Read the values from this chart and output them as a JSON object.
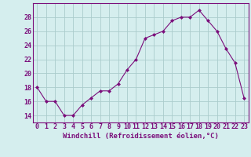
{
  "x": [
    0,
    1,
    2,
    3,
    4,
    5,
    6,
    7,
    8,
    9,
    10,
    11,
    12,
    13,
    14,
    15,
    16,
    17,
    18,
    19,
    20,
    21,
    22,
    23
  ],
  "y": [
    18.0,
    16.0,
    16.0,
    14.0,
    14.0,
    15.5,
    16.5,
    17.5,
    17.5,
    18.5,
    20.5,
    22.0,
    25.0,
    25.5,
    26.0,
    27.5,
    28.0,
    28.0,
    29.0,
    27.5,
    26.0,
    23.5,
    21.5,
    16.5
  ],
  "line_color": "#7b0e7b",
  "marker": "D",
  "marker_size": 2.0,
  "bg_color": "#d5eeee",
  "grid_color": "#aacccc",
  "xlabel": "Windchill (Refroidissement éolien,°C)",
  "xlabel_fontsize": 6.5,
  "tick_fontsize": 6.0,
  "ylim": [
    13,
    30
  ],
  "yticks": [
    14,
    16,
    18,
    20,
    22,
    24,
    26,
    28
  ],
  "xlim": [
    -0.5,
    23.5
  ],
  "spine_color": "#7b0e7b",
  "label_color": "#7b0e7b"
}
